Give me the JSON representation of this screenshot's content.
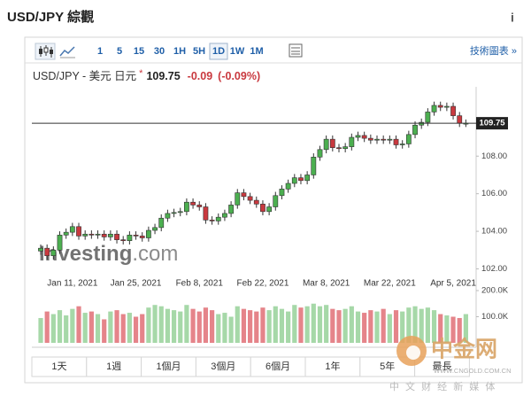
{
  "header": {
    "title": "USD/JPY 綜觀",
    "info": "i"
  },
  "toolbar": {
    "intervals": [
      "1",
      "5",
      "15",
      "30",
      "1H",
      "5H",
      "1D",
      "1W",
      "1M"
    ],
    "selected_index": 6,
    "link": "技術圖表 »"
  },
  "quote": {
    "symbol": "USD/JPY - 美元 日元",
    "marker": "*",
    "price": 109.75,
    "change": "-0.09",
    "change_pct": "(-0.09%)"
  },
  "chart_data": {
    "type": "candlestick",
    "categories": [
      null,
      null,
      null,
      null,
      null,
      "Jan 11, 2021",
      null,
      null,
      null,
      null,
      null,
      null,
      null,
      null,
      null,
      "Jan 25, 2021",
      null,
      null,
      null,
      null,
      null,
      null,
      null,
      null,
      null,
      "Feb 8, 2021",
      null,
      null,
      null,
      null,
      null,
      null,
      null,
      null,
      null,
      "Feb 22, 2021",
      null,
      null,
      null,
      null,
      null,
      null,
      null,
      null,
      null,
      "Mar 8, 2021",
      null,
      null,
      null,
      null,
      null,
      null,
      null,
      null,
      null,
      "Mar 22, 2021",
      null,
      null,
      null,
      null,
      null,
      null,
      null,
      null,
      null,
      "Apr 5, 2021",
      null,
      null
    ],
    "open": [
      102.95,
      103.1,
      102.7,
      103.0,
      103.8,
      103.95,
      104.25,
      103.75,
      103.85,
      103.8,
      103.85,
      103.7,
      103.85,
      103.55,
      103.5,
      103.8,
      103.75,
      103.65,
      104.05,
      104.2,
      104.7,
      104.95,
      105.0,
      105.05,
      105.55,
      105.4,
      105.3,
      104.6,
      104.55,
      104.75,
      104.95,
      105.4,
      106.05,
      105.85,
      105.65,
      105.45,
      105.05,
      105.3,
      105.9,
      106.25,
      106.55,
      106.85,
      106.7,
      107.0,
      107.95,
      108.35,
      108.9,
      108.45,
      108.4,
      108.5,
      109.0,
      109.1,
      108.95,
      108.85,
      108.9,
      108.85,
      108.9,
      108.6,
      108.65,
      109.15,
      109.65,
      109.8,
      110.35,
      110.7,
      110.6,
      110.65,
      110.15,
      109.75
    ],
    "high": [
      103.3,
      103.3,
      103.2,
      104.0,
      104.15,
      104.45,
      104.45,
      104.05,
      104.05,
      104.05,
      104.05,
      104.05,
      104.05,
      103.75,
      104.0,
      104.0,
      103.95,
      104.25,
      104.4,
      104.9,
      105.15,
      105.2,
      105.25,
      105.75,
      105.75,
      105.6,
      105.5,
      104.8,
      104.95,
      105.15,
      105.6,
      106.25,
      106.25,
      106.05,
      105.85,
      105.65,
      105.5,
      106.1,
      106.45,
      106.75,
      107.05,
      107.05,
      107.2,
      108.15,
      108.55,
      109.1,
      109.1,
      108.65,
      108.7,
      109.2,
      109.3,
      109.3,
      109.15,
      109.1,
      109.1,
      109.1,
      109.1,
      108.85,
      109.35,
      109.85,
      110.0,
      110.55,
      110.9,
      110.9,
      110.85,
      110.85,
      110.35,
      109.95
    ],
    "low": [
      102.75,
      102.5,
      102.5,
      102.8,
      103.6,
      103.75,
      103.55,
      103.55,
      103.6,
      103.6,
      103.5,
      103.5,
      103.35,
      103.3,
      103.3,
      103.55,
      103.45,
      103.45,
      103.85,
      104.0,
      104.5,
      104.75,
      104.8,
      104.85,
      105.2,
      105.1,
      104.4,
      104.35,
      104.35,
      104.55,
      104.75,
      105.2,
      105.65,
      105.45,
      105.25,
      104.85,
      104.85,
      105.1,
      105.7,
      106.05,
      106.35,
      106.5,
      106.5,
      106.8,
      107.75,
      108.15,
      108.25,
      108.2,
      108.2,
      108.3,
      108.8,
      108.75,
      108.65,
      108.65,
      108.65,
      108.65,
      108.4,
      108.4,
      108.45,
      108.95,
      109.45,
      109.6,
      110.15,
      110.4,
      110.4,
      109.95,
      109.55,
      109.55
    ],
    "close": [
      103.1,
      102.7,
      103.0,
      103.8,
      103.95,
      104.25,
      103.75,
      103.85,
      103.8,
      103.85,
      103.7,
      103.85,
      103.55,
      103.5,
      103.8,
      103.75,
      103.65,
      104.05,
      104.2,
      104.7,
      104.95,
      105.0,
      105.05,
      105.55,
      105.4,
      105.3,
      104.6,
      104.55,
      104.75,
      104.95,
      105.4,
      106.05,
      105.85,
      105.65,
      105.45,
      105.05,
      105.3,
      105.9,
      106.25,
      106.55,
      106.85,
      106.7,
      107.0,
      107.95,
      108.35,
      108.9,
      108.45,
      108.4,
      108.5,
      109.0,
      109.1,
      108.95,
      108.85,
      108.9,
      108.85,
      108.9,
      108.6,
      108.65,
      109.15,
      109.65,
      109.8,
      110.35,
      110.7,
      110.6,
      110.65,
      110.15,
      109.75,
      109.75
    ],
    "volume": [
      95000,
      120000,
      110000,
      125000,
      105000,
      130000,
      140000,
      115000,
      120000,
      110000,
      90000,
      120000,
      125000,
      110000,
      115000,
      100000,
      110000,
      135000,
      145000,
      140000,
      130000,
      125000,
      120000,
      145000,
      130000,
      120000,
      135000,
      125000,
      110000,
      115000,
      100000,
      140000,
      130000,
      125000,
      120000,
      135000,
      125000,
      140000,
      130000,
      120000,
      145000,
      135000,
      140000,
      150000,
      140000,
      145000,
      130000,
      125000,
      130000,
      140000,
      120000,
      115000,
      125000,
      120000,
      130000,
      110000,
      125000,
      120000,
      135000,
      140000,
      130000,
      135000,
      125000,
      110000,
      105000,
      100000,
      95000,
      110000
    ],
    "ylim": [
      101.6,
      111.5
    ],
    "yticks": [
      {
        "value": 102,
        "label": "102.00"
      },
      {
        "value": 104,
        "label": "104.00"
      },
      {
        "value": 106,
        "label": "106.00"
      },
      {
        "value": 108,
        "label": "108.00"
      }
    ],
    "y2lim": [
      0,
      200000
    ],
    "y2ticks": [
      {
        "value": 100000,
        "label": "100.0K"
      },
      {
        "value": 200000,
        "label": "200.0K"
      }
    ],
    "up_color": "#4caf50",
    "down_color": "#c9393f",
    "up_volume_color": "#a6d8a8",
    "down_volume_color": "#e5848a",
    "grid": false
  },
  "ranges": [
    "1天",
    "1週",
    "1個月",
    "3個月",
    "6個月",
    "1年",
    "5年",
    "最長"
  ],
  "watermarks": {
    "investing": "Investing",
    "investing_suffix": ".com",
    "cngold": "中金网",
    "cngold_url": "WWW.CNGOLD.COM.CN",
    "cngold_tagline": "中 文 财 经 新 媒 体"
  }
}
